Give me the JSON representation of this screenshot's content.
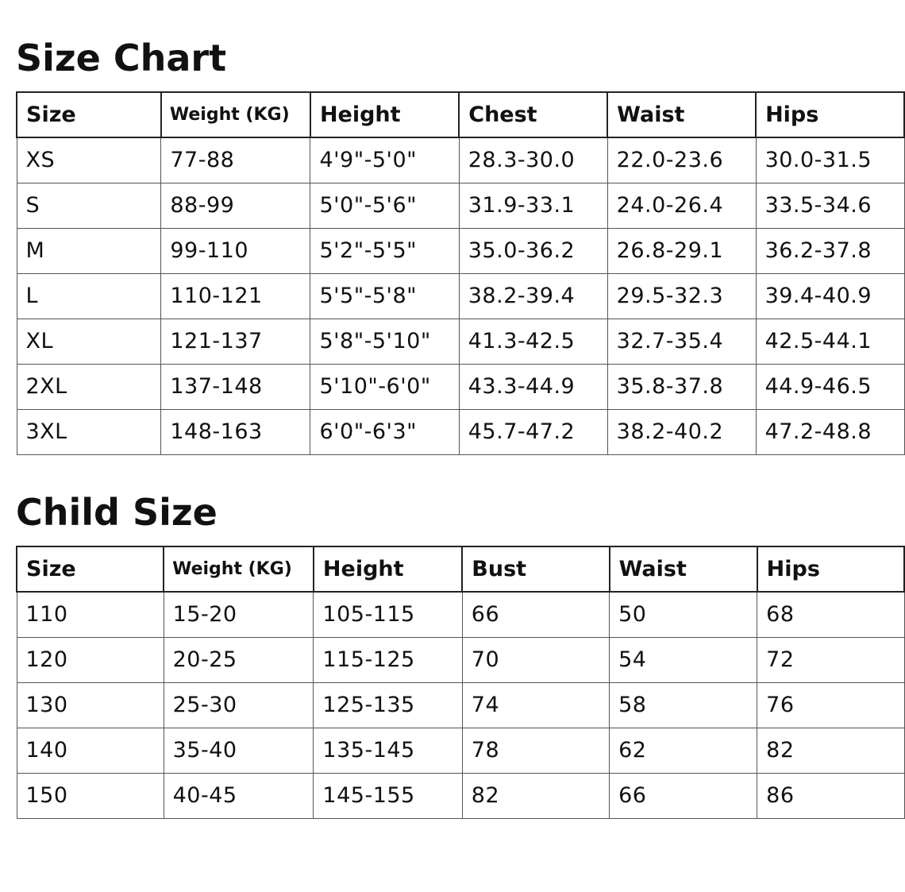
{
  "tables": [
    {
      "title": "Size Chart",
      "headers": [
        "Size",
        "Weight (KG)",
        "Height",
        "Chest",
        "Waist",
        "Hips"
      ],
      "rows": [
        [
          "XS",
          "77-88",
          "4'9\"-5'0\"",
          "28.3-30.0",
          "22.0-23.6",
          "30.0-31.5"
        ],
        [
          "S",
          "88-99",
          "5'0\"-5'6\"",
          "31.9-33.1",
          "24.0-26.4",
          "33.5-34.6"
        ],
        [
          "M",
          "99-110",
          "5'2\"-5'5\"",
          "35.0-36.2",
          "26.8-29.1",
          "36.2-37.8"
        ],
        [
          "L",
          "110-121",
          "5'5\"-5'8\"",
          "38.2-39.4",
          "29.5-32.3",
          "39.4-40.9"
        ],
        [
          "XL",
          "121-137",
          "5'8\"-5'10\"",
          "41.3-42.5",
          "32.7-35.4",
          "42.5-44.1"
        ],
        [
          "2XL",
          "137-148",
          "5'10\"-6'0\"",
          "43.3-44.9",
          "35.8-37.8",
          "44.9-46.5"
        ],
        [
          "3XL",
          "148-163",
          "6'0\"-6'3\"",
          "45.7-47.2",
          "38.2-40.2",
          "47.2-48.8"
        ]
      ]
    },
    {
      "title": "Child Size",
      "headers": [
        "Size",
        "Weight (KG)",
        "Height",
        "Bust",
        "Waist",
        "Hips"
      ],
      "rows": [
        [
          "110",
          "15-20",
          "105-115",
          "66",
          "50",
          "68"
        ],
        [
          "120",
          "20-25",
          "115-125",
          "70",
          "54",
          "72"
        ],
        [
          "130",
          "25-30",
          "125-135",
          "74",
          "58",
          "76"
        ],
        [
          "140",
          "35-40",
          "135-145",
          "78",
          "62",
          "82"
        ],
        [
          "150",
          "40-45",
          "145-155",
          "82",
          "66",
          "86"
        ]
      ]
    }
  ]
}
